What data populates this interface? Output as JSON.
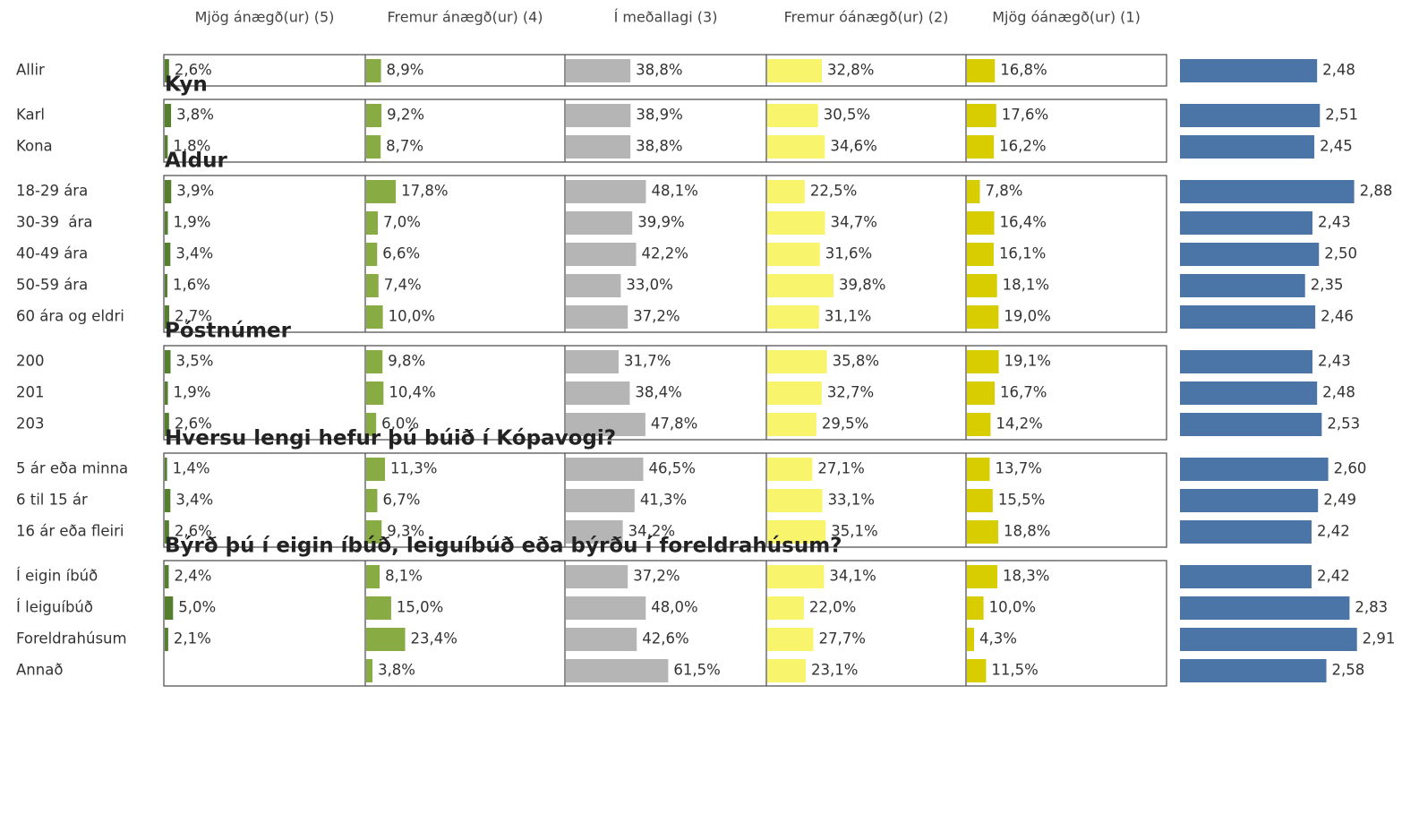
{
  "chart_data": {
    "type": "bar_table",
    "columns": [
      {
        "name": "Mjög ánægð(ur) (5)",
        "color": "#557f2c"
      },
      {
        "name": "Fremur ánægð(ur) (4)",
        "color": "#88ab43"
      },
      {
        "name": "Í meðallagi (3)",
        "color": "#b5b5b5"
      },
      {
        "name": "Fremur óánægð(ur) (2)",
        "color": "#f8f46c"
      },
      {
        "name": "Mjög óánægð(ur) (1)",
        "color": "#d8cd00"
      }
    ],
    "xlim": [
      0,
      100
    ],
    "mean_color": "#4a75a6",
    "mean_xlim": [
      1,
      5
    ],
    "groups": [
      {
        "rows": [
          {
            "label": "Allir",
            "values": [
              2.6,
              8.9,
              38.8,
              32.8,
              16.8
            ],
            "value_labels": [
              "2,6%",
              "8,9%",
              "38,8%",
              "32,8%",
              "16,8%"
            ],
            "mean": 2.48,
            "mean_label": "2,48"
          }
        ]
      },
      {
        "title": "Kyn",
        "rows": [
          {
            "label": "Karl",
            "values": [
              3.8,
              9.2,
              38.9,
              30.5,
              17.6
            ],
            "value_labels": [
              "3,8%",
              "9,2%",
              "38,9%",
              "30,5%",
              "17,6%"
            ],
            "mean": 2.51,
            "mean_label": "2,51"
          },
          {
            "label": "Kona",
            "values": [
              1.8,
              8.7,
              38.8,
              34.6,
              16.2
            ],
            "value_labels": [
              "1,8%",
              "8,7%",
              "38,8%",
              "34,6%",
              "16,2%"
            ],
            "mean": 2.45,
            "mean_label": "2,45"
          }
        ]
      },
      {
        "title": "Aldur",
        "rows": [
          {
            "label": "18-29 ára",
            "values": [
              3.9,
              17.8,
              48.1,
              22.5,
              7.8
            ],
            "value_labels": [
              "3,9%",
              "17,8%",
              "48,1%",
              "22,5%",
              "7,8%"
            ],
            "mean": 2.88,
            "mean_label": "2,88"
          },
          {
            "label": "30-39  ára",
            "values": [
              1.9,
              7.0,
              39.9,
              34.7,
              16.4
            ],
            "value_labels": [
              "1,9%",
              "7,0%",
              "39,9%",
              "34,7%",
              "16,4%"
            ],
            "mean": 2.43,
            "mean_label": "2,43"
          },
          {
            "label": "40-49 ára",
            "values": [
              3.4,
              6.6,
              42.2,
              31.6,
              16.1
            ],
            "value_labels": [
              "3,4%",
              "6,6%",
              "42,2%",
              "31,6%",
              "16,1%"
            ],
            "mean": 2.5,
            "mean_label": "2,50"
          },
          {
            "label": "50-59 ára",
            "values": [
              1.6,
              7.4,
              33.0,
              39.8,
              18.1
            ],
            "value_labels": [
              "1,6%",
              "7,4%",
              "33,0%",
              "39,8%",
              "18,1%"
            ],
            "mean": 2.35,
            "mean_label": "2,35"
          },
          {
            "label": "60 ára og eldri",
            "values": [
              2.7,
              10.0,
              37.2,
              31.1,
              19.0
            ],
            "value_labels": [
              "2,7%",
              "10,0%",
              "37,2%",
              "31,1%",
              "19,0%"
            ],
            "mean": 2.46,
            "mean_label": "2,46"
          }
        ]
      },
      {
        "title": "Póstnúmer",
        "rows": [
          {
            "label": "200",
            "values": [
              3.5,
              9.8,
              31.7,
              35.8,
              19.1
            ],
            "value_labels": [
              "3,5%",
              "9,8%",
              "31,7%",
              "35,8%",
              "19,1%"
            ],
            "mean": 2.43,
            "mean_label": "2,43"
          },
          {
            "label": "201",
            "values": [
              1.9,
              10.4,
              38.4,
              32.7,
              16.7
            ],
            "value_labels": [
              "1,9%",
              "10,4%",
              "38,4%",
              "32,7%",
              "16,7%"
            ],
            "mean": 2.48,
            "mean_label": "2,48"
          },
          {
            "label": "203",
            "values": [
              2.6,
              6.0,
              47.8,
              29.5,
              14.2
            ],
            "value_labels": [
              "2,6%",
              "6,0%",
              "47,8%",
              "29,5%",
              "14,2%"
            ],
            "mean": 2.53,
            "mean_label": "2,53"
          }
        ]
      },
      {
        "title": "Hversu lengi hefur þú búið í Kópavogi?",
        "rows": [
          {
            "label": "5 ár eða minna",
            "values": [
              1.4,
              11.3,
              46.5,
              27.1,
              13.7
            ],
            "value_labels": [
              "1,4%",
              "11,3%",
              "46,5%",
              "27,1%",
              "13,7%"
            ],
            "mean": 2.6,
            "mean_label": "2,60"
          },
          {
            "label": "6 til 15 ár",
            "values": [
              3.4,
              6.7,
              41.3,
              33.1,
              15.5
            ],
            "value_labels": [
              "3,4%",
              "6,7%",
              "41,3%",
              "33,1%",
              "15,5%"
            ],
            "mean": 2.49,
            "mean_label": "2,49"
          },
          {
            "label": "16 ár eða fleiri",
            "values": [
              2.6,
              9.3,
              34.2,
              35.1,
              18.8
            ],
            "value_labels": [
              "2,6%",
              "9,3%",
              "34,2%",
              "35,1%",
              "18,8%"
            ],
            "mean": 2.42,
            "mean_label": "2,42"
          }
        ]
      },
      {
        "title": "Býrð þú í eigin íbúð, leiguíbúð eða býrðu í foreldrahúsum?",
        "rows": [
          {
            "label": "Í eigin íbúð",
            "values": [
              2.4,
              8.1,
              37.2,
              34.1,
              18.3
            ],
            "value_labels": [
              "2,4%",
              "8,1%",
              "37,2%",
              "34,1%",
              "18,3%"
            ],
            "mean": 2.42,
            "mean_label": "2,42"
          },
          {
            "label": "Í leiguíbúð",
            "values": [
              5.0,
              15.0,
              48.0,
              22.0,
              10.0
            ],
            "value_labels": [
              "5,0%",
              "15,0%",
              "48,0%",
              "22,0%",
              "10,0%"
            ],
            "mean": 2.83,
            "mean_label": "2,83"
          },
          {
            "label": "Foreldrahúsum",
            "values": [
              2.1,
              23.4,
              42.6,
              27.7,
              4.3
            ],
            "value_labels": [
              "2,1%",
              "23,4%",
              "42,6%",
              "27,7%",
              "4,3%"
            ],
            "mean": 2.91,
            "mean_label": "2,91"
          },
          {
            "label": "Annað",
            "values": [
              null,
              3.8,
              61.5,
              23.1,
              11.5
            ],
            "value_labels": [
              null,
              "3,8%",
              "61,5%",
              "23,1%",
              "11,5%"
            ],
            "mean": 2.58,
            "mean_label": "2,58"
          }
        ]
      }
    ]
  }
}
